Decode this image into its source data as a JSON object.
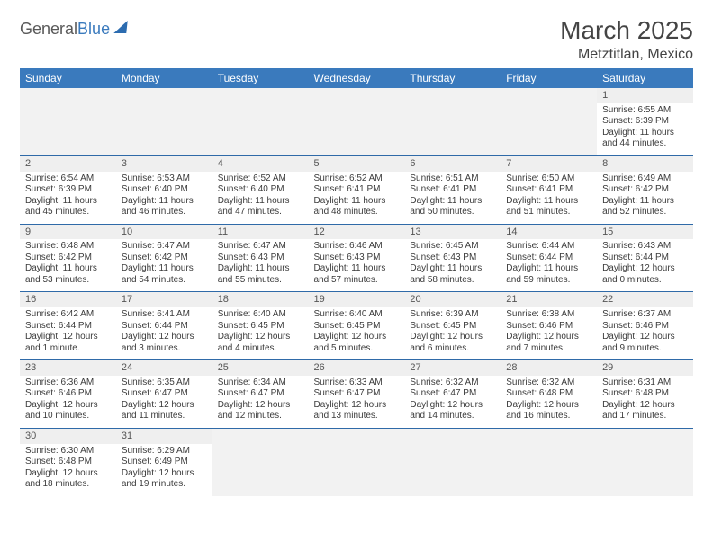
{
  "logo": {
    "word1": "General",
    "word2": "Blue"
  },
  "title": "March 2025",
  "location": "Metztitlan, Mexico",
  "colors": {
    "header_bg": "#3a7abd",
    "header_text": "#ffffff",
    "row_divider": "#2f6aa8",
    "daynum_bg": "#efefef",
    "empty_bg": "#f2f2f2",
    "page_bg": "#ffffff",
    "body_text": "#3b3b3b",
    "title_text": "#444444",
    "logo_gray": "#595959",
    "logo_blue": "#3a7abd"
  },
  "day_headers": [
    "Sunday",
    "Monday",
    "Tuesday",
    "Wednesday",
    "Thursday",
    "Friday",
    "Saturday"
  ],
  "weeks": [
    [
      null,
      null,
      null,
      null,
      null,
      null,
      {
        "n": "1",
        "sr": "Sunrise: 6:55 AM",
        "ss": "Sunset: 6:39 PM",
        "d1": "Daylight: 11 hours",
        "d2": "and 44 minutes."
      }
    ],
    [
      {
        "n": "2",
        "sr": "Sunrise: 6:54 AM",
        "ss": "Sunset: 6:39 PM",
        "d1": "Daylight: 11 hours",
        "d2": "and 45 minutes."
      },
      {
        "n": "3",
        "sr": "Sunrise: 6:53 AM",
        "ss": "Sunset: 6:40 PM",
        "d1": "Daylight: 11 hours",
        "d2": "and 46 minutes."
      },
      {
        "n": "4",
        "sr": "Sunrise: 6:52 AM",
        "ss": "Sunset: 6:40 PM",
        "d1": "Daylight: 11 hours",
        "d2": "and 47 minutes."
      },
      {
        "n": "5",
        "sr": "Sunrise: 6:52 AM",
        "ss": "Sunset: 6:41 PM",
        "d1": "Daylight: 11 hours",
        "d2": "and 48 minutes."
      },
      {
        "n": "6",
        "sr": "Sunrise: 6:51 AM",
        "ss": "Sunset: 6:41 PM",
        "d1": "Daylight: 11 hours",
        "d2": "and 50 minutes."
      },
      {
        "n": "7",
        "sr": "Sunrise: 6:50 AM",
        "ss": "Sunset: 6:41 PM",
        "d1": "Daylight: 11 hours",
        "d2": "and 51 minutes."
      },
      {
        "n": "8",
        "sr": "Sunrise: 6:49 AM",
        "ss": "Sunset: 6:42 PM",
        "d1": "Daylight: 11 hours",
        "d2": "and 52 minutes."
      }
    ],
    [
      {
        "n": "9",
        "sr": "Sunrise: 6:48 AM",
        "ss": "Sunset: 6:42 PM",
        "d1": "Daylight: 11 hours",
        "d2": "and 53 minutes."
      },
      {
        "n": "10",
        "sr": "Sunrise: 6:47 AM",
        "ss": "Sunset: 6:42 PM",
        "d1": "Daylight: 11 hours",
        "d2": "and 54 minutes."
      },
      {
        "n": "11",
        "sr": "Sunrise: 6:47 AM",
        "ss": "Sunset: 6:43 PM",
        "d1": "Daylight: 11 hours",
        "d2": "and 55 minutes."
      },
      {
        "n": "12",
        "sr": "Sunrise: 6:46 AM",
        "ss": "Sunset: 6:43 PM",
        "d1": "Daylight: 11 hours",
        "d2": "and 57 minutes."
      },
      {
        "n": "13",
        "sr": "Sunrise: 6:45 AM",
        "ss": "Sunset: 6:43 PM",
        "d1": "Daylight: 11 hours",
        "d2": "and 58 minutes."
      },
      {
        "n": "14",
        "sr": "Sunrise: 6:44 AM",
        "ss": "Sunset: 6:44 PM",
        "d1": "Daylight: 11 hours",
        "d2": "and 59 minutes."
      },
      {
        "n": "15",
        "sr": "Sunrise: 6:43 AM",
        "ss": "Sunset: 6:44 PM",
        "d1": "Daylight: 12 hours",
        "d2": "and 0 minutes."
      }
    ],
    [
      {
        "n": "16",
        "sr": "Sunrise: 6:42 AM",
        "ss": "Sunset: 6:44 PM",
        "d1": "Daylight: 12 hours",
        "d2": "and 1 minute."
      },
      {
        "n": "17",
        "sr": "Sunrise: 6:41 AM",
        "ss": "Sunset: 6:44 PM",
        "d1": "Daylight: 12 hours",
        "d2": "and 3 minutes."
      },
      {
        "n": "18",
        "sr": "Sunrise: 6:40 AM",
        "ss": "Sunset: 6:45 PM",
        "d1": "Daylight: 12 hours",
        "d2": "and 4 minutes."
      },
      {
        "n": "19",
        "sr": "Sunrise: 6:40 AM",
        "ss": "Sunset: 6:45 PM",
        "d1": "Daylight: 12 hours",
        "d2": "and 5 minutes."
      },
      {
        "n": "20",
        "sr": "Sunrise: 6:39 AM",
        "ss": "Sunset: 6:45 PM",
        "d1": "Daylight: 12 hours",
        "d2": "and 6 minutes."
      },
      {
        "n": "21",
        "sr": "Sunrise: 6:38 AM",
        "ss": "Sunset: 6:46 PM",
        "d1": "Daylight: 12 hours",
        "d2": "and 7 minutes."
      },
      {
        "n": "22",
        "sr": "Sunrise: 6:37 AM",
        "ss": "Sunset: 6:46 PM",
        "d1": "Daylight: 12 hours",
        "d2": "and 9 minutes."
      }
    ],
    [
      {
        "n": "23",
        "sr": "Sunrise: 6:36 AM",
        "ss": "Sunset: 6:46 PM",
        "d1": "Daylight: 12 hours",
        "d2": "and 10 minutes."
      },
      {
        "n": "24",
        "sr": "Sunrise: 6:35 AM",
        "ss": "Sunset: 6:47 PM",
        "d1": "Daylight: 12 hours",
        "d2": "and 11 minutes."
      },
      {
        "n": "25",
        "sr": "Sunrise: 6:34 AM",
        "ss": "Sunset: 6:47 PM",
        "d1": "Daylight: 12 hours",
        "d2": "and 12 minutes."
      },
      {
        "n": "26",
        "sr": "Sunrise: 6:33 AM",
        "ss": "Sunset: 6:47 PM",
        "d1": "Daylight: 12 hours",
        "d2": "and 13 minutes."
      },
      {
        "n": "27",
        "sr": "Sunrise: 6:32 AM",
        "ss": "Sunset: 6:47 PM",
        "d1": "Daylight: 12 hours",
        "d2": "and 14 minutes."
      },
      {
        "n": "28",
        "sr": "Sunrise: 6:32 AM",
        "ss": "Sunset: 6:48 PM",
        "d1": "Daylight: 12 hours",
        "d2": "and 16 minutes."
      },
      {
        "n": "29",
        "sr": "Sunrise: 6:31 AM",
        "ss": "Sunset: 6:48 PM",
        "d1": "Daylight: 12 hours",
        "d2": "and 17 minutes."
      }
    ],
    [
      {
        "n": "30",
        "sr": "Sunrise: 6:30 AM",
        "ss": "Sunset: 6:48 PM",
        "d1": "Daylight: 12 hours",
        "d2": "and 18 minutes."
      },
      {
        "n": "31",
        "sr": "Sunrise: 6:29 AM",
        "ss": "Sunset: 6:49 PM",
        "d1": "Daylight: 12 hours",
        "d2": "and 19 minutes."
      },
      null,
      null,
      null,
      null,
      null
    ]
  ]
}
